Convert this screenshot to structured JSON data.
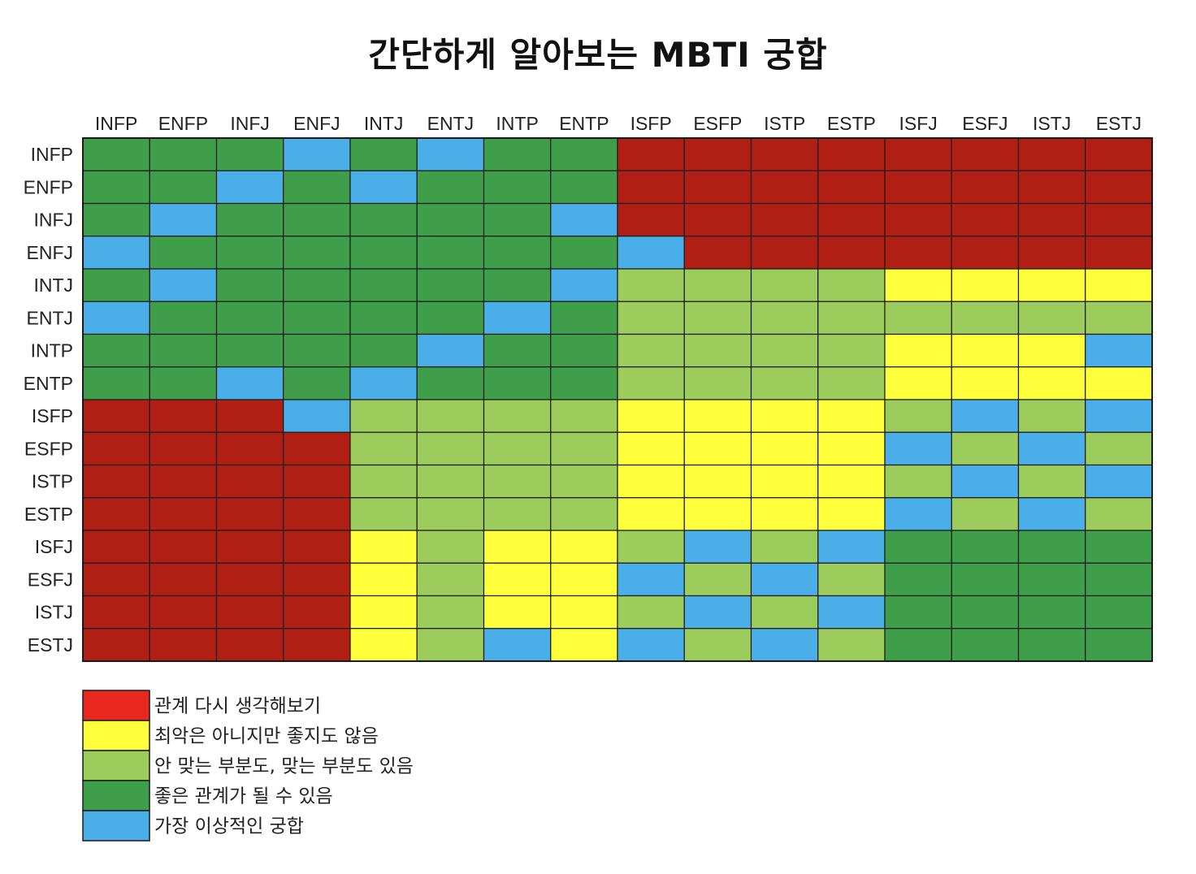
{
  "chart_data": {
    "type": "heatmap",
    "title": "간단하게 알아보는 MBTI 궁합",
    "x_categories": [
      "INFP",
      "ENFP",
      "INFJ",
      "ENFJ",
      "INTJ",
      "ENTJ",
      "INTP",
      "ENTP",
      "ISFP",
      "ESFP",
      "ISTP",
      "ESTP",
      "ISFJ",
      "ESFJ",
      "ISTJ",
      "ESTJ"
    ],
    "y_categories": [
      "INFP",
      "ENFP",
      "INFJ",
      "ENFJ",
      "INTJ",
      "ENTJ",
      "INTP",
      "ENTP",
      "ISFP",
      "ESFP",
      "ISTP",
      "ESTP",
      "ISFJ",
      "ESFJ",
      "ISTJ",
      "ESTJ"
    ],
    "levels": [
      {
        "code": 1,
        "label": "관계 다시 생각해보기",
        "color": "#b01e14"
      },
      {
        "code": 2,
        "label": "최악은 아니지만 좋지도 않음",
        "color": "#ffff3c"
      },
      {
        "code": 3,
        "label": "안 맞는 부분도, 맞는 부분도 있음",
        "color": "#9ccc5c"
      },
      {
        "code": 4,
        "label": "좋은 관계가 될 수 있음",
        "color": "#3e9e4a"
      },
      {
        "code": 5,
        "label": "가장 이상적인 궁합",
        "color": "#4aaee8"
      }
    ],
    "legend_swatch_color_1": "#e8281e",
    "legend_position": "bottom-left",
    "grid": true,
    "values": [
      [
        4,
        4,
        4,
        5,
        4,
        5,
        4,
        4,
        1,
        1,
        1,
        1,
        1,
        1,
        1,
        1
      ],
      [
        4,
        4,
        5,
        4,
        5,
        4,
        4,
        4,
        1,
        1,
        1,
        1,
        1,
        1,
        1,
        1
      ],
      [
        4,
        5,
        4,
        4,
        4,
        4,
        4,
        5,
        1,
        1,
        1,
        1,
        1,
        1,
        1,
        1
      ],
      [
        5,
        4,
        4,
        4,
        4,
        4,
        4,
        4,
        5,
        1,
        1,
        1,
        1,
        1,
        1,
        1
      ],
      [
        4,
        5,
        4,
        4,
        4,
        4,
        4,
        5,
        3,
        3,
        3,
        3,
        2,
        2,
        2,
        2
      ],
      [
        5,
        4,
        4,
        4,
        4,
        4,
        5,
        4,
        3,
        3,
        3,
        3,
        3,
        3,
        3,
        3
      ],
      [
        4,
        4,
        4,
        4,
        4,
        5,
        4,
        4,
        3,
        3,
        3,
        3,
        2,
        2,
        2,
        5
      ],
      [
        4,
        4,
        5,
        4,
        5,
        4,
        4,
        4,
        3,
        3,
        3,
        3,
        2,
        2,
        2,
        2
      ],
      [
        1,
        1,
        1,
        5,
        3,
        3,
        3,
        3,
        2,
        2,
        2,
        2,
        3,
        5,
        3,
        5
      ],
      [
        1,
        1,
        1,
        1,
        3,
        3,
        3,
        3,
        2,
        2,
        2,
        2,
        5,
        3,
        5,
        3
      ],
      [
        1,
        1,
        1,
        1,
        3,
        3,
        3,
        3,
        2,
        2,
        2,
        2,
        3,
        5,
        3,
        5
      ],
      [
        1,
        1,
        1,
        1,
        3,
        3,
        3,
        3,
        2,
        2,
        2,
        2,
        5,
        3,
        5,
        3
      ],
      [
        1,
        1,
        1,
        1,
        2,
        3,
        2,
        2,
        3,
        5,
        3,
        5,
        4,
        4,
        4,
        4
      ],
      [
        1,
        1,
        1,
        1,
        2,
        3,
        2,
        2,
        5,
        3,
        5,
        3,
        4,
        4,
        4,
        4
      ],
      [
        1,
        1,
        1,
        1,
        2,
        3,
        2,
        2,
        3,
        5,
        3,
        5,
        4,
        4,
        4,
        4
      ],
      [
        1,
        1,
        1,
        1,
        2,
        3,
        5,
        2,
        5,
        3,
        5,
        3,
        4,
        4,
        4,
        4
      ]
    ]
  }
}
